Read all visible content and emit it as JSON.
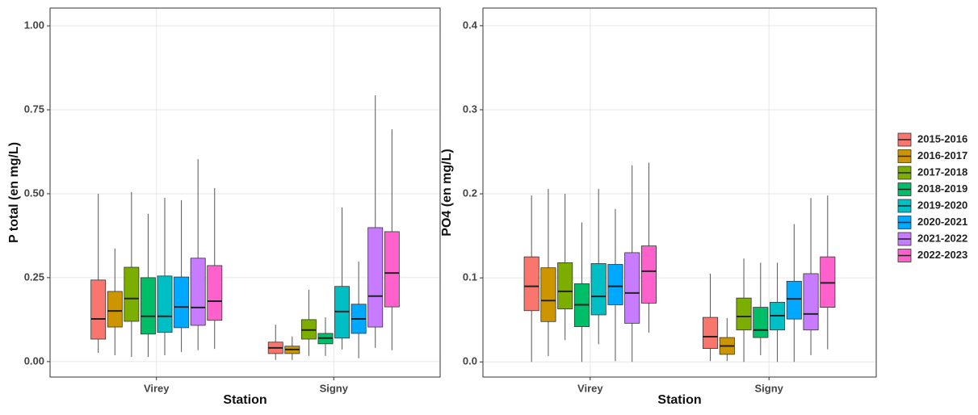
{
  "chart_data": [
    {
      "type": "box",
      "y_label": "P total (en mg/L)",
      "x_label": "Station",
      "categories": [
        "Virey",
        "Signy"
      ],
      "ylim": [
        -0.046,
        1.053
      ],
      "yticks": [
        {
          "value": 0,
          "label": "0.00"
        },
        {
          "value": 0.25,
          "label": "0.25"
        },
        {
          "value": 0.5,
          "label": "0.50"
        },
        {
          "value": 0.75,
          "label": "0.75"
        },
        {
          "value": 1,
          "label": "1.00"
        }
      ],
      "grid": true,
      "series": [
        {
          "name": "2015-2016",
          "color": "#F8766D",
          "values": [
            {
              "low": 0.026,
              "q1": 0.067,
              "median": 0.127,
              "q3": 0.243,
              "high": 0.5
            },
            {
              "low": 0.005,
              "q1": 0.024,
              "median": 0.041,
              "q3": 0.058,
              "high": 0.11
            }
          ]
        },
        {
          "name": "2016-2017",
          "color": "#CD9600",
          "values": [
            {
              "low": 0.019,
              "q1": 0.103,
              "median": 0.151,
              "q3": 0.209,
              "high": 0.337
            },
            {
              "low": 0.005,
              "q1": 0.024,
              "median": 0.036,
              "q3": 0.046,
              "high": 0.075
            }
          ]
        },
        {
          "name": "2017-2018",
          "color": "#7CAE00",
          "values": [
            {
              "low": 0.014,
              "q1": 0.12,
              "median": 0.188,
              "q3": 0.281,
              "high": 0.505
            },
            {
              "low": 0.017,
              "q1": 0.067,
              "median": 0.094,
              "q3": 0.125,
              "high": 0.214
            }
          ]
        },
        {
          "name": "2018-2019",
          "color": "#00BE67",
          "values": [
            {
              "low": 0.014,
              "q1": 0.082,
              "median": 0.135,
              "q3": 0.25,
              "high": 0.44
            },
            {
              "low": 0.017,
              "q1": 0.053,
              "median": 0.07,
              "q3": 0.084,
              "high": 0.132
            }
          ]
        },
        {
          "name": "2019-2020",
          "color": "#00BFC4",
          "values": [
            {
              "low": 0.019,
              "q1": 0.087,
              "median": 0.135,
              "q3": 0.255,
              "high": 0.488
            },
            {
              "low": 0.036,
              "q1": 0.07,
              "median": 0.149,
              "q3": 0.224,
              "high": 0.459
            }
          ]
        },
        {
          "name": "2020-2021",
          "color": "#00A9FF",
          "values": [
            {
              "low": 0.029,
              "q1": 0.101,
              "median": 0.163,
              "q3": 0.252,
              "high": 0.481
            },
            {
              "low": 0.01,
              "q1": 0.084,
              "median": 0.127,
              "q3": 0.171,
              "high": 0.298
            }
          ]
        },
        {
          "name": "2021-2022",
          "color": "#C77CFF",
          "values": [
            {
              "low": 0.034,
              "q1": 0.108,
              "median": 0.161,
              "q3": 0.308,
              "high": 0.603
            },
            {
              "low": 0.041,
              "q1": 0.103,
              "median": 0.195,
              "q3": 0.399,
              "high": 0.793
            }
          ]
        },
        {
          "name": "2022-2023",
          "color": "#FF61CC",
          "values": [
            {
              "low": 0.038,
              "q1": 0.123,
              "median": 0.18,
              "q3": 0.286,
              "high": 0.517
            },
            {
              "low": 0.034,
              "q1": 0.163,
              "median": 0.264,
              "q3": 0.387,
              "high": 0.692
            }
          ]
        }
      ]
    },
    {
      "type": "box",
      "y_label": "PO4 (en mg/L)",
      "x_label": "Station",
      "categories": [
        "Virey",
        "Signy"
      ],
      "ylim": [
        -0.018,
        0.421
      ],
      "yticks": [
        {
          "value": 0,
          "label": "0.0"
        },
        0.1,
        0.2,
        0.3,
        0.4
      ],
      "grid": true,
      "series": [
        {
          "color": "#F8766D",
          "values": [
            {
              "low": 0.0,
              "q1": 0.061,
              "median": 0.09,
              "q3": 0.125,
              "high": 0.198
            },
            {
              "low": 0.001,
              "q1": 0.016,
              "median": 0.03,
              "q3": 0.053,
              "high": 0.105
            }
          ]
        },
        {
          "color": "#CD9600",
          "values": [
            {
              "low": 0.007,
              "q1": 0.048,
              "median": 0.073,
              "q3": 0.112,
              "high": 0.206
            },
            {
              "low": 0.001,
              "q1": 0.009,
              "median": 0.019,
              "q3": 0.029,
              "high": 0.052
            }
          ]
        },
        {
          "color": "#7CAE00",
          "values": [
            {
              "low": 0.026,
              "q1": 0.063,
              "median": 0.084,
              "q3": 0.118,
              "high": 0.2
            },
            {
              "low": 0.0,
              "q1": 0.038,
              "median": 0.054,
              "q3": 0.076,
              "high": 0.123
            }
          ]
        },
        {
          "color": "#00BE67",
          "values": [
            {
              "low": 0.0,
              "q1": 0.042,
              "median": 0.068,
              "q3": 0.093,
              "high": 0.166
            },
            {
              "low": 0.008,
              "q1": 0.029,
              "median": 0.038,
              "q3": 0.065,
              "high": 0.118
            }
          ]
        },
        {
          "color": "#00BFC4",
          "values": [
            {
              "low": 0.021,
              "q1": 0.056,
              "median": 0.078,
              "q3": 0.117,
              "high": 0.206
            },
            {
              "low": 0.0,
              "q1": 0.038,
              "median": 0.055,
              "q3": 0.071,
              "high": 0.118
            }
          ]
        },
        {
          "color": "#00A9FF",
          "values": [
            {
              "low": 0.001,
              "q1": 0.068,
              "median": 0.09,
              "q3": 0.116,
              "high": 0.182
            },
            {
              "low": 0.0,
              "q1": 0.051,
              "median": 0.075,
              "q3": 0.096,
              "high": 0.164
            }
          ]
        },
        {
          "color": "#C77CFF",
          "values": [
            {
              "low": 0.0,
              "q1": 0.046,
              "median": 0.082,
              "q3": 0.13,
              "high": 0.234
            },
            {
              "low": 0.008,
              "q1": 0.038,
              "median": 0.057,
              "q3": 0.105,
              "high": 0.195
            }
          ]
        },
        {
          "color": "#FF61CC",
          "values": [
            {
              "low": 0.035,
              "q1": 0.07,
              "median": 0.108,
              "q3": 0.138,
              "high": 0.237
            },
            {
              "low": 0.015,
              "q1": 0.065,
              "median": 0.094,
              "q3": 0.125,
              "high": 0.198
            }
          ]
        }
      ]
    }
  ]
}
